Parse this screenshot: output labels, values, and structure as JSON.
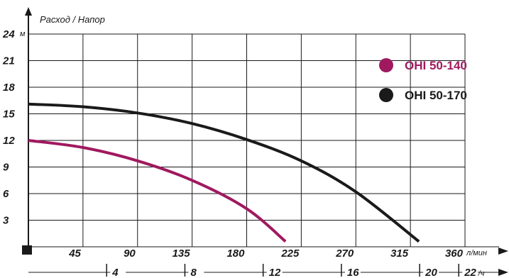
{
  "chart_data": {
    "type": "line",
    "title": "Расход / Напор",
    "y_unit": "м",
    "x_unit": "л/мин",
    "x2_unit": "м3/ч",
    "y_ticks": [
      "24",
      "21",
      "18",
      "15",
      "12",
      "9",
      "6",
      "3"
    ],
    "y_tick_values": [
      24,
      21,
      18,
      15,
      12,
      9,
      6,
      3
    ],
    "x_ticks": [
      "45",
      "90",
      "135",
      "180",
      "225",
      "270",
      "315",
      "360"
    ],
    "x_tick_values": [
      45,
      90,
      135,
      180,
      225,
      270,
      315,
      360
    ],
    "x2_ticks": [
      "4",
      "8",
      "12",
      "16",
      "20",
      "22"
    ],
    "x2_tick_values": [
      4,
      8,
      12,
      16,
      20,
      22
    ],
    "xlim": [
      0,
      360
    ],
    "ylim": [
      0,
      24
    ],
    "grid": true,
    "legend_position": "top-right",
    "series": [
      {
        "name": "OHI 50-140",
        "color": "#a0195f",
        "x": [
          0,
          45,
          90,
          135,
          180,
          212
        ],
        "y": [
          12,
          11.2,
          9.7,
          7.5,
          4.3,
          0.6
        ]
      },
      {
        "name": "OHI 50-170",
        "color": "#1a1a1a",
        "x": [
          0,
          45,
          90,
          135,
          180,
          225,
          270,
          322
        ],
        "y": [
          16.1,
          15.8,
          15.1,
          13.9,
          12.1,
          9.7,
          6.2,
          0.6
        ]
      }
    ]
  }
}
